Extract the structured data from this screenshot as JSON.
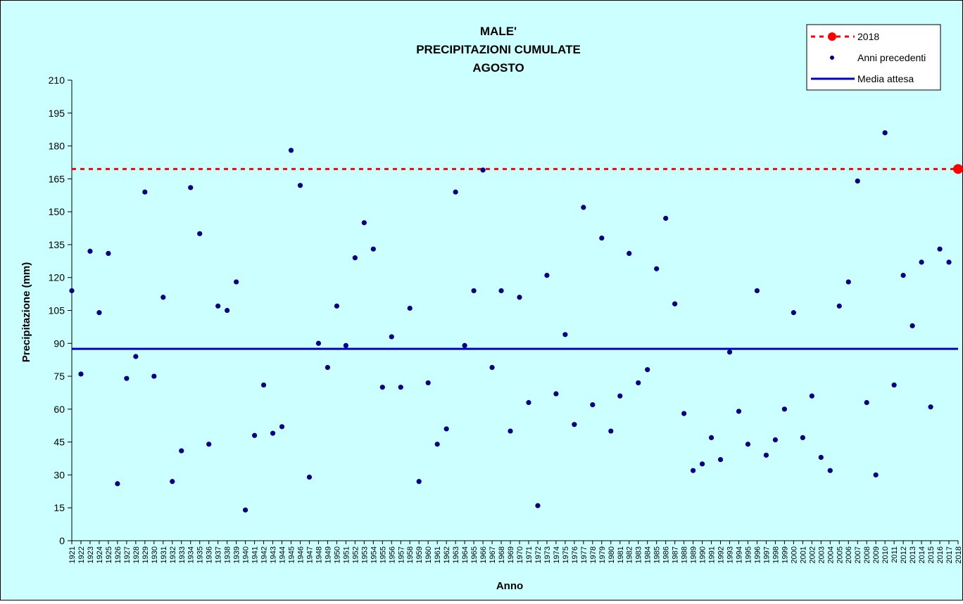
{
  "chart_data": {
    "type": "scatter",
    "title": [
      "MALE'",
      "PRECIPITAZIONI CUMULATE",
      "AGOSTO"
    ],
    "xlabel": "Anno",
    "ylabel": "Precipitazione (mm)",
    "ylim": [
      0,
      210
    ],
    "yticks": [
      0,
      15,
      30,
      45,
      60,
      75,
      90,
      105,
      120,
      135,
      150,
      165,
      180,
      195,
      210
    ],
    "grid": false,
    "legend_position": "top-right",
    "colors": {
      "plot_background": "#ccffff",
      "current_year": "#ff0000",
      "previous_years": "#000080",
      "mean": "#0000cc"
    },
    "categories": [
      "1921",
      "1922",
      "1923",
      "1924",
      "1925",
      "1926",
      "1927",
      "1928",
      "1929",
      "1930",
      "1931",
      "1932",
      "1933",
      "1934",
      "1935",
      "1936",
      "1937",
      "1938",
      "1939",
      "1940",
      "1941",
      "1942",
      "1943",
      "1944",
      "1945",
      "1946",
      "1947",
      "1948",
      "1949",
      "1950",
      "1951",
      "1952",
      "1953",
      "1954",
      "1955",
      "1956",
      "1957",
      "1958",
      "1959",
      "1960",
      "1961",
      "1962",
      "1963",
      "1964",
      "1965",
      "1966",
      "1967",
      "1968",
      "1969",
      "1970",
      "1971",
      "1972",
      "1973",
      "1974",
      "1975",
      "1976",
      "1977",
      "1978",
      "1979",
      "1980",
      "1981",
      "1982",
      "1983",
      "1984",
      "1985",
      "1986",
      "1987",
      "1988",
      "1989",
      "1990",
      "1991",
      "1992",
      "1993",
      "1994",
      "1995",
      "1996",
      "1997",
      "1998",
      "1999",
      "2000",
      "2001",
      "2002",
      "2003",
      "2004",
      "2005",
      "2006",
      "2007",
      "2008",
      "2009",
      "2010",
      "2011",
      "2012",
      "2013",
      "2014",
      "2015",
      "2016",
      "2017",
      "2018"
    ],
    "series": [
      {
        "name": "Anni precedenti",
        "kind": "points",
        "values": [
          114,
          76,
          132,
          104,
          131,
          26,
          74,
          84,
          159,
          75,
          111,
          27,
          41,
          161,
          140,
          44,
          107,
          105,
          118,
          14,
          48,
          71,
          49,
          52,
          178,
          162,
          29,
          90,
          79,
          107,
          89,
          129,
          145,
          133,
          70,
          93,
          70,
          106,
          27,
          72,
          44,
          51,
          159,
          89,
          114,
          169,
          79,
          114,
          50,
          111,
          63,
          16,
          121,
          67,
          94,
          53,
          152,
          62,
          138,
          50,
          66,
          131,
          72,
          78,
          124,
          147,
          108,
          58,
          32,
          35,
          47,
          37,
          86,
          59,
          44,
          114,
          39,
          46,
          60,
          104,
          47,
          66,
          38,
          32,
          107,
          118,
          164,
          63,
          30,
          186,
          71,
          121,
          98,
          127,
          61,
          133,
          127,
          null
        ]
      },
      {
        "name": "2018",
        "kind": "hline_marker",
        "value": 169.5,
        "marker_year": "2018"
      },
      {
        "name": "Media attesa",
        "kind": "hline",
        "value": 87.5
      }
    ]
  }
}
